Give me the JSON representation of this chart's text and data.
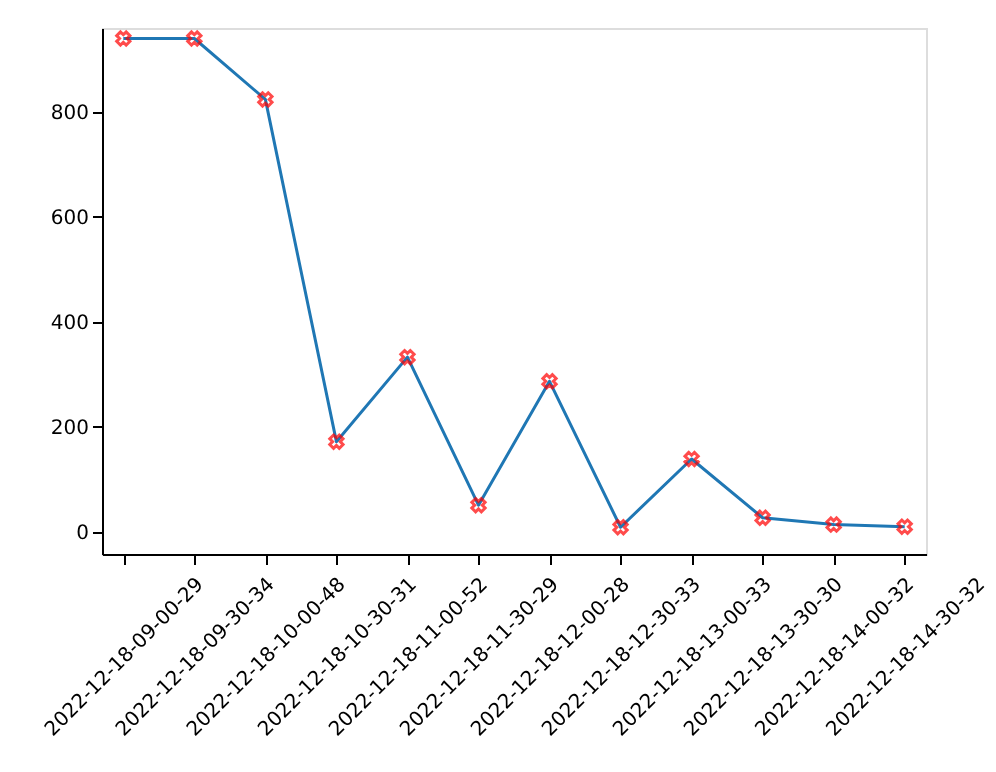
{
  "chart_data": {
    "type": "line",
    "categories": [
      "2022-12-18-09-00-29",
      "2022-12-18-09-30-34",
      "2022-12-18-10-00-48",
      "2022-12-18-10-30-31",
      "2022-12-18-11-00-52",
      "2022-12-18-11-30-29",
      "2022-12-18-12-00-28",
      "2022-12-18-12-30-33",
      "2022-12-18-13-00-33",
      "2022-12-18-13-30-30",
      "2022-12-18-14-00-32",
      "2022-12-18-14-30-32"
    ],
    "series": [
      {
        "type": "line",
        "color": "#1f77b4",
        "marker": "none",
        "values": [
          940,
          940,
          824,
          172,
          333,
          51,
          287,
          9,
          139,
          27,
          14,
          10
        ]
      },
      {
        "type": "scatter",
        "color": "#ff0000",
        "marker": "cross",
        "values": [
          940,
          940,
          824,
          172,
          333,
          51,
          287,
          9,
          139,
          27,
          14,
          10
        ]
      }
    ],
    "ylim": [
      -42,
      960
    ],
    "yticks": [
      0,
      200,
      400,
      600,
      800
    ],
    "grid": false
  }
}
